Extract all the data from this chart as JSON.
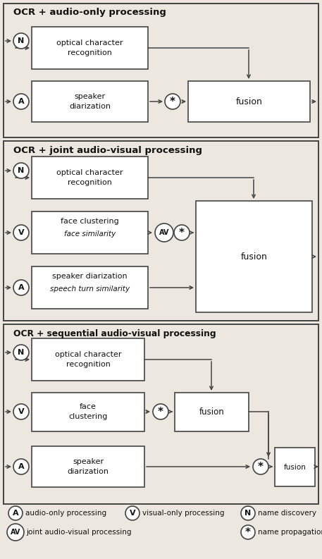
{
  "bg_color": "#ede8df",
  "panel_bg": "#ede8df",
  "box_color": "#ffffff",
  "border_color": "#444444",
  "text_color": "#111111",
  "panel1_title": "OCR + audio-only processing",
  "panel2_title": "OCR + joint audio-visual processing",
  "panel3_title": "OCR + sequential audio-visual processing"
}
